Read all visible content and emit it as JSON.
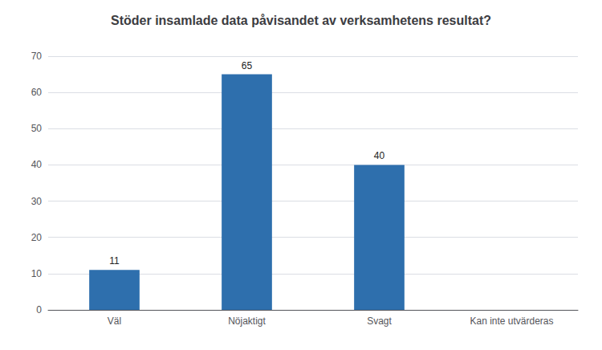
{
  "chart_data": {
    "type": "bar",
    "title": "Stöder insamlade data påvisandet av verksamhetens resultat?",
    "categories": [
      "Väl",
      "Nöjaktigt",
      "Svagt",
      "Kan inte utvärderas"
    ],
    "values": [
      11,
      65,
      40,
      0
    ],
    "value_labels": [
      "11",
      "65",
      "40",
      null
    ],
    "color": "#2e6fad",
    "ylim": [
      0,
      70
    ],
    "yticks": [
      0,
      10,
      20,
      30,
      40,
      50,
      60,
      70
    ],
    "grid": true,
    "data_labels": true
  }
}
